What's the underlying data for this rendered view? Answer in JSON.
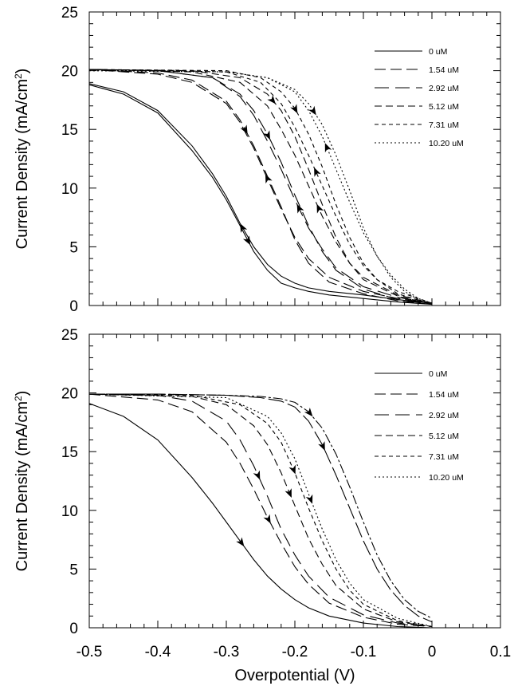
{
  "chart_data": [
    {
      "type": "line",
      "panel": "top",
      "hysteresis": true,
      "xlabel": "",
      "ylabel": "Current Density (mA/cm",
      "ylabel_sup": "2",
      "ylabel_close": ")",
      "xlim": [
        -0.5,
        0.1
      ],
      "ylim": [
        0,
        25
      ],
      "yticks": [
        0,
        5,
        10,
        15,
        20,
        25
      ],
      "xtick_labels_shown": false,
      "grid": false,
      "legend_position": "top-right",
      "legend": [
        "0 uM",
        "1.54 uM",
        "2.92 uM",
        "5.12 uM",
        "7.31 uM",
        "10.20 uM"
      ],
      "series": [
        {
          "name": "0 uM",
          "dash": "solid",
          "forward": {
            "x": [
              -0.5,
              -0.45,
              -0.4,
              -0.35,
              -0.32,
              -0.3,
              -0.28,
              -0.26,
              -0.24,
              -0.22,
              -0.2,
              -0.18,
              -0.15,
              -0.1,
              -0.05,
              0.0
            ],
            "y": [
              18.8,
              18.0,
              16.4,
              13.2,
              10.9,
              9.0,
              6.8,
              4.6,
              3.0,
              1.9,
              1.5,
              1.2,
              0.9,
              0.6,
              0.3,
              0.1
            ]
          },
          "reverse": {
            "x": [
              0.0,
              -0.05,
              -0.1,
              -0.15,
              -0.18,
              -0.2,
              -0.22,
              -0.24,
              -0.26,
              -0.28,
              -0.3,
              -0.32,
              -0.35,
              -0.4,
              -0.45,
              -0.5
            ],
            "y": [
              0.2,
              0.5,
              0.9,
              1.2,
              1.5,
              1.9,
              2.5,
              3.5,
              5.0,
              7.0,
              9.3,
              11.2,
              13.6,
              16.6,
              18.2,
              18.9
            ]
          }
        },
        {
          "name": "1.54 uM",
          "dash": "14,6",
          "forward": {
            "x": [
              -0.5,
              -0.4,
              -0.35,
              -0.3,
              -0.28,
              -0.26,
              -0.24,
              -0.22,
              -0.2,
              -0.18,
              -0.15,
              -0.1,
              -0.05,
              0.0
            ],
            "y": [
              20.1,
              19.8,
              19.2,
              17.4,
              15.8,
              13.6,
              11.0,
              8.4,
              5.6,
              3.6,
              2.0,
              1.0,
              0.4,
              0.1
            ]
          },
          "reverse": {
            "x": [
              0.0,
              -0.05,
              -0.1,
              -0.15,
              -0.18,
              -0.2,
              -0.22,
              -0.24,
              -0.26,
              -0.28,
              -0.3,
              -0.35,
              -0.4,
              -0.5
            ],
            "y": [
              0.2,
              0.6,
              1.2,
              2.4,
              4.0,
              5.8,
              8.2,
              10.8,
              13.4,
              15.6,
              17.2,
              19.0,
              19.7,
              20.1
            ]
          }
        },
        {
          "name": "2.92 uM",
          "dash": "18,8",
          "forward": {
            "x": [
              -0.5,
              -0.4,
              -0.32,
              -0.28,
              -0.26,
              -0.24,
              -0.22,
              -0.2,
              -0.18,
              -0.16,
              -0.14,
              -0.1,
              -0.05,
              0.0
            ],
            "y": [
              20.1,
              20.0,
              19.4,
              18.0,
              16.6,
              14.6,
              12.2,
              9.4,
              6.8,
              4.6,
              3.0,
              1.4,
              0.5,
              0.1
            ]
          },
          "reverse": {
            "x": [
              0.0,
              -0.05,
              -0.1,
              -0.14,
              -0.16,
              -0.18,
              -0.2,
              -0.22,
              -0.24,
              -0.26,
              -0.28,
              -0.32,
              -0.4,
              -0.5
            ],
            "y": [
              0.2,
              0.7,
              1.6,
              3.2,
              4.8,
              6.6,
              9.0,
              11.6,
              14.0,
              16.2,
              17.8,
              19.4,
              20.0,
              20.1
            ]
          }
        },
        {
          "name": "5.12 uM",
          "dash": "9,5",
          "forward": {
            "x": [
              -0.5,
              -0.35,
              -0.28,
              -0.24,
              -0.22,
              -0.2,
              -0.18,
              -0.16,
              -0.14,
              -0.12,
              -0.1,
              -0.05,
              0.0
            ],
            "y": [
              20.1,
              20.0,
              19.4,
              18.0,
              16.6,
              14.4,
              11.6,
              8.6,
              5.8,
              3.6,
              2.2,
              0.8,
              0.1
            ]
          },
          "reverse": {
            "x": [
              0.0,
              -0.05,
              -0.1,
              -0.12,
              -0.14,
              -0.16,
              -0.18,
              -0.2,
              -0.22,
              -0.24,
              -0.28,
              -0.35,
              -0.5
            ],
            "y": [
              0.2,
              0.9,
              2.4,
              3.6,
              5.4,
              7.6,
              10.2,
              12.8,
              15.0,
              17.0,
              19.0,
              19.9,
              20.1
            ]
          }
        },
        {
          "name": "7.31 uM",
          "dash": "5,4",
          "forward": {
            "x": [
              -0.5,
              -0.3,
              -0.25,
              -0.22,
              -0.2,
              -0.18,
              -0.16,
              -0.14,
              -0.12,
              -0.1,
              -0.08,
              -0.05,
              0.0
            ],
            "y": [
              20.1,
              20.0,
              19.4,
              18.2,
              16.8,
              14.6,
              11.8,
              8.6,
              5.8,
              3.6,
              2.2,
              1.0,
              0.1
            ]
          },
          "reverse": {
            "x": [
              0.0,
              -0.05,
              -0.08,
              -0.1,
              -0.12,
              -0.14,
              -0.16,
              -0.18,
              -0.2,
              -0.22,
              -0.25,
              -0.3,
              -0.5
            ],
            "y": [
              0.2,
              1.2,
              2.2,
              3.4,
              5.2,
              7.6,
              10.2,
              12.8,
              15.2,
              17.2,
              19.0,
              19.9,
              20.1
            ]
          }
        },
        {
          "name": "10.20 uM",
          "dash": "2,3",
          "forward": {
            "x": [
              -0.5,
              -0.3,
              -0.24,
              -0.2,
              -0.18,
              -0.16,
              -0.14,
              -0.12,
              -0.1,
              -0.08,
              -0.06,
              -0.04,
              -0.02,
              0.0
            ],
            "y": [
              20.0,
              19.9,
              19.4,
              18.4,
              17.2,
              15.4,
              12.8,
              9.8,
              6.6,
              4.2,
              2.4,
              1.2,
              0.5,
              0.1
            ]
          },
          "reverse": {
            "x": [
              0.0,
              -0.02,
              -0.04,
              -0.06,
              -0.08,
              -0.1,
              -0.12,
              -0.14,
              -0.16,
              -0.18,
              -0.2,
              -0.24,
              -0.3,
              -0.5
            ],
            "y": [
              0.2,
              0.6,
              1.4,
              2.6,
              4.2,
              6.2,
              8.8,
              11.6,
              14.4,
              16.6,
              18.2,
              19.4,
              19.9,
              20.0
            ]
          }
        }
      ]
    },
    {
      "type": "line",
      "panel": "bottom",
      "hysteresis": false,
      "xlabel": "Overpotential (V)",
      "ylabel": "Current Density (mA/cm",
      "ylabel_sup": "2",
      "ylabel_close": ")",
      "xlim": [
        -0.5,
        0.1
      ],
      "ylim": [
        0,
        25
      ],
      "xticks": [
        -0.5,
        -0.4,
        -0.3,
        -0.2,
        -0.1,
        0,
        0.1
      ],
      "xtick_labels": [
        "-0.5",
        "-0.4",
        "-0.3",
        "-0.2",
        "-0.1",
        "0",
        "0.1"
      ],
      "yticks": [
        0,
        5,
        10,
        15,
        20,
        25
      ],
      "grid": false,
      "legend_position": "top-right",
      "legend": [
        "0 uM",
        "1.54 uM",
        "2.92 uM",
        "5.12 uM",
        "7.31 uM",
        "10.20 uM"
      ],
      "series": [
        {
          "name": "0 uM",
          "dash": "solid",
          "x": [
            -0.5,
            -0.45,
            -0.4,
            -0.35,
            -0.32,
            -0.3,
            -0.28,
            -0.26,
            -0.24,
            -0.22,
            -0.2,
            -0.18,
            -0.15,
            -0.1,
            -0.05,
            0.0
          ],
          "y": [
            19.1,
            18.0,
            16.0,
            12.8,
            10.6,
            9.0,
            7.4,
            5.8,
            4.4,
            3.3,
            2.4,
            1.7,
            1.0,
            0.4,
            0.1,
            0.0
          ]
        },
        {
          "name": "1.54 uM",
          "dash": "14,6",
          "x": [
            -0.5,
            -0.4,
            -0.35,
            -0.3,
            -0.28,
            -0.26,
            -0.24,
            -0.22,
            -0.2,
            -0.18,
            -0.15,
            -0.1,
            -0.05,
            0.0
          ],
          "y": [
            19.9,
            19.4,
            18.4,
            15.8,
            14.0,
            11.8,
            9.4,
            7.2,
            5.2,
            3.7,
            2.1,
            0.9,
            0.3,
            0.1
          ]
        },
        {
          "name": "2.92 uM",
          "dash": "18,8",
          "x": [
            -0.5,
            -0.4,
            -0.35,
            -0.3,
            -0.28,
            -0.26,
            -0.24,
            -0.22,
            -0.2,
            -0.18,
            -0.15,
            -0.1,
            -0.05,
            0.0
          ],
          "y": [
            19.9,
            19.8,
            19.3,
            17.6,
            16.0,
            13.8,
            11.2,
            8.4,
            6.2,
            4.4,
            2.6,
            1.1,
            0.4,
            0.1
          ]
        },
        {
          "name": "5.12 uM",
          "dash": "9,5",
          "x": [
            -0.5,
            -0.35,
            -0.3,
            -0.26,
            -0.24,
            -0.22,
            -0.2,
            -0.18,
            -0.16,
            -0.14,
            -0.1,
            -0.05,
            0.0
          ],
          "y": [
            19.9,
            19.7,
            19.0,
            17.2,
            15.6,
            13.2,
            10.4,
            7.6,
            5.4,
            3.6,
            1.6,
            0.5,
            0.1
          ]
        },
        {
          "name": "7.31 uM",
          "dash": "5,4",
          "x": [
            -0.5,
            -0.35,
            -0.28,
            -0.24,
            -0.22,
            -0.2,
            -0.18,
            -0.16,
            -0.14,
            -0.12,
            -0.1,
            -0.05,
            0.0
          ],
          "y": [
            19.9,
            19.8,
            19.0,
            17.4,
            15.8,
            13.2,
            10.2,
            7.4,
            5.0,
            3.2,
            2.0,
            0.6,
            0.1
          ]
        },
        {
          "name": "10.20 uM",
          "dash": "2,3",
          "x": [
            -0.5,
            -0.3,
            -0.24,
            -0.22,
            -0.2,
            -0.18,
            -0.16,
            -0.14,
            -0.12,
            -0.1,
            -0.05,
            0.0
          ],
          "y": [
            19.9,
            19.6,
            18.0,
            16.6,
            14.4,
            11.4,
            8.4,
            5.8,
            3.8,
            2.4,
            0.8,
            0.1
          ]
        },
        {
          "name": "",
          "dash": "12,3,3,3",
          "x": [
            -0.5,
            -0.4,
            -0.3,
            -0.25,
            -0.22,
            -0.2,
            -0.18,
            -0.16,
            -0.14,
            -0.12,
            -0.1,
            -0.08,
            -0.06,
            -0.04,
            -0.02,
            0.0
          ],
          "y": [
            19.9,
            19.9,
            19.8,
            19.7,
            19.5,
            19.2,
            18.4,
            17.0,
            14.8,
            12.0,
            9.0,
            6.2,
            4.0,
            2.4,
            1.4,
            0.8
          ]
        },
        {
          "name": "",
          "dash": "20,5",
          "x": [
            -0.5,
            -0.4,
            -0.3,
            -0.25,
            -0.22,
            -0.2,
            -0.18,
            -0.16,
            -0.14,
            -0.12,
            -0.1,
            -0.08,
            -0.06,
            -0.04,
            -0.02,
            0.0
          ],
          "y": [
            19.9,
            19.9,
            19.8,
            19.6,
            19.3,
            18.8,
            17.6,
            15.6,
            13.0,
            10.2,
            7.4,
            5.0,
            3.2,
            1.9,
            1.0,
            0.5
          ]
        }
      ]
    }
  ]
}
